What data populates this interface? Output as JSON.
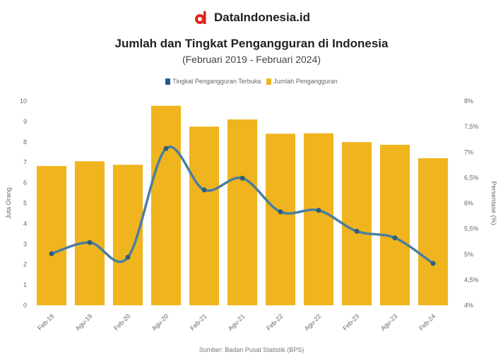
{
  "brand": {
    "name": "DataIndonesia.id",
    "logo": "dataindonesia-logo-icon",
    "color": "#e2231a"
  },
  "chart_data": {
    "type": "bar",
    "title": "Jumlah dan Tingkat Pengangguran di Indonesia",
    "subtitle": "(Februari 2019 - Februari 2024)",
    "source": "Sumber: Badan Pusat Statistik (BPS)",
    "categories": [
      "Feb-19",
      "Agu-19",
      "Feb-20",
      "Agu-20",
      "Feb-21",
      "Agu-21",
      "Feb-22",
      "Agu-22",
      "Feb-23",
      "Agu-23",
      "Feb-24"
    ],
    "series": [
      {
        "name": "Tingkat Pengangguran Terbuka",
        "type": "line",
        "axis": "right",
        "color": "#4a7ea0",
        "values": [
          5.01,
          5.23,
          4.94,
          7.07,
          6.26,
          6.49,
          5.83,
          5.86,
          5.45,
          5.32,
          4.82
        ]
      },
      {
        "name": "Jumlah Pengangguran",
        "type": "bar",
        "axis": "left",
        "color": "#f0b41e",
        "values": [
          6.82,
          7.05,
          6.88,
          9.77,
          8.75,
          9.1,
          8.4,
          8.42,
          7.99,
          7.86,
          7.2
        ]
      }
    ],
    "ylabel": "Juta Orang",
    "ylim": [
      0,
      10
    ],
    "yticks": [
      "0",
      "1",
      "2",
      "3",
      "4",
      "5",
      "6",
      "7",
      "8",
      "9",
      "10"
    ],
    "y2label": "Persentase (%)",
    "y2lim": [
      4,
      8
    ],
    "y2ticks": [
      "4%",
      "4,5%",
      "5%",
      "5,5%",
      "6%",
      "6,5%",
      "7%",
      "7,5%",
      "8%"
    ],
    "legend_position": "top",
    "grid": false
  }
}
